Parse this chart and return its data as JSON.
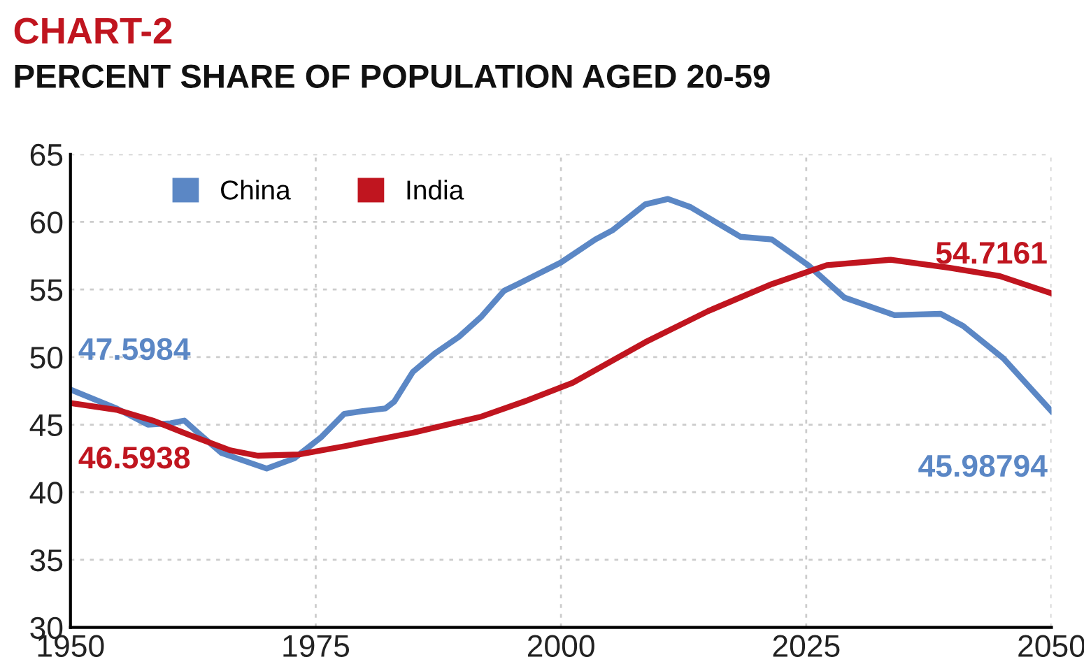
{
  "chart_data": {
    "type": "line",
    "title": "CHART-2",
    "subtitle": "PERCENT SHARE OF POPULATION AGED 20-59",
    "xlim": [
      1950,
      2050
    ],
    "xticks": [
      1950,
      1975,
      2000,
      2025,
      2050
    ],
    "ylim": [
      30,
      65
    ],
    "yticks": [
      30,
      35,
      40,
      45,
      50,
      55,
      60,
      65
    ],
    "grid": true,
    "legend": "top left",
    "marker": "none",
    "line_style": "solid",
    "series": [
      {
        "name": "China",
        "color": "#5b87c5",
        "x": [
          1950,
          1954.7,
          1957.9,
          1960.2,
          1961.6,
          1963,
          1965.4,
          1970,
          1972.8,
          1975.6,
          1977.9,
          1979.8,
          1982.1,
          1983,
          1984.9,
          1987.2,
          1989.6,
          1991.9,
          1994.2,
          1995.6,
          2000,
          2003.5,
          2005.3,
          2008.6,
          2010.9,
          2013.2,
          2018.3,
          2021.5,
          2025.2,
          2028.9,
          2034,
          2038.7,
          2041,
          2045.1,
          2050
        ],
        "values": [
          47.5984,
          46.2,
          45.0,
          45.1,
          45.3,
          44.4,
          42.9,
          41.75,
          42.5,
          44.1,
          45.8,
          46.0,
          46.2,
          46.7,
          48.9,
          50.3,
          51.5,
          53.0,
          54.9,
          55.4,
          57.0,
          58.7,
          59.4,
          61.3,
          61.7,
          61.1,
          58.9,
          58.7,
          56.8,
          54.4,
          53.1,
          53.2,
          52.3,
          49.9,
          45.98794
        ],
        "value_labels": [
          "47.5984",
          null,
          null,
          null,
          null,
          null,
          null,
          null,
          null,
          null,
          null,
          null,
          null,
          null,
          null,
          null,
          null,
          null,
          null,
          null,
          null,
          null,
          null,
          null,
          null,
          null,
          null,
          null,
          null,
          null,
          null,
          null,
          null,
          null,
          "45.98794"
        ]
      },
      {
        "name": "India",
        "color": "#c0151f",
        "x": [
          1950,
          1954.7,
          1958.4,
          1962.6,
          1966.3,
          1969.1,
          1973.3,
          1977.9,
          1984.9,
          1991.9,
          1996.6,
          2001.2,
          2008.6,
          2015,
          2021.5,
          2027.1,
          2033.6,
          2039.6,
          2044.7,
          2050
        ],
        "values": [
          46.5938,
          46.1,
          45.3,
          44.1,
          43.1,
          42.7,
          42.8,
          43.4,
          44.4,
          45.6,
          46.8,
          48.1,
          51.1,
          53.4,
          55.4,
          56.8,
          57.2,
          56.6,
          56.0,
          54.7161
        ],
        "value_labels": [
          "46.5938",
          null,
          null,
          null,
          null,
          null,
          null,
          null,
          null,
          null,
          null,
          null,
          null,
          null,
          null,
          null,
          null,
          null,
          null,
          "54.7161"
        ]
      }
    ]
  }
}
